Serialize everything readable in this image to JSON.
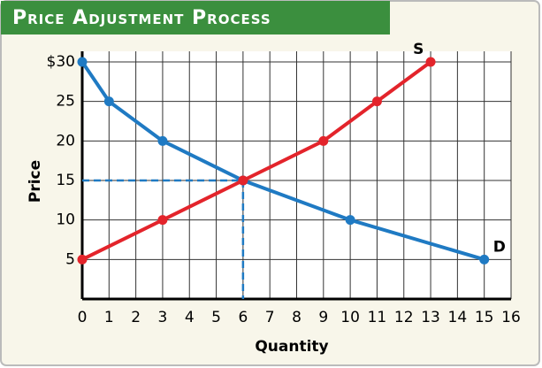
{
  "chart_data": {
    "type": "line",
    "title": "Price Adjustment Process",
    "x_label": "Quantity",
    "y_label": "Price",
    "series": [
      {
        "name": "D",
        "color": "#1f7ac3",
        "x": [
          0,
          1,
          3,
          6,
          10,
          15
        ],
        "values": [
          30,
          25,
          20,
          15,
          10,
          5
        ]
      },
      {
        "name": "S",
        "color": "#e3242b",
        "x": [
          0,
          3,
          6,
          9,
          11,
          13
        ],
        "values": [
          5,
          10,
          15,
          20,
          25,
          30
        ]
      }
    ],
    "equilibrium": {
      "x": 6,
      "y": 15
    },
    "xlim": [
      0,
      16
    ],
    "xticks": [
      0,
      1,
      2,
      3,
      4,
      5,
      6,
      7,
      8,
      9,
      10,
      11,
      12,
      13,
      14,
      15,
      16
    ],
    "ylim": [
      0,
      30
    ],
    "yticks": [
      {
        "value": 30,
        "label": "$30"
      },
      25,
      20,
      15,
      10,
      5
    ],
    "grid": true
  }
}
